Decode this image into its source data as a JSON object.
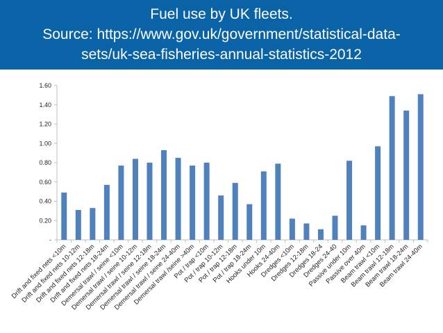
{
  "header": {
    "line1": "Fuel use by UK fleets.",
    "line2": "Source: https://www.gov.uk/government/statistical-data-",
    "line3": "sets/uk-sea-fisheries-annual-statistics-2012"
  },
  "colors": {
    "header_bg": "#0a63a6",
    "bar": "#4f81bd",
    "axis": "#bfbfbf"
  },
  "chart_data": {
    "type": "bar",
    "title": "",
    "xlabel": "",
    "ylabel": "",
    "ylim": [
      0,
      1.6
    ],
    "yticks": [
      0,
      0.2,
      0.4,
      0.6,
      0.8,
      1.0,
      1.2,
      1.4,
      1.6
    ],
    "ytick_labels": [
      "-",
      "0.20",
      "0.40",
      "0.60",
      "0.80",
      "1.00",
      "1.20",
      "1.40",
      "1.60"
    ],
    "grid": false,
    "legend": "none",
    "categories": [
      "Drift and fixed nets <10m",
      "Drift and fixed nets 10-12m",
      "Drift and fixed nets 12-18m",
      "Drift and fixed nets 18-24m",
      "Demersal trawl / seine <10m",
      "Demersal trawl / seine 10-12m",
      "Demersal trawl / seine 12-18m",
      "Demersal trawl / seine 18-24m",
      "Demersal trawl / seine 24-40m",
      "Demersal trawl /seine >40m",
      "Pot / trap <10m",
      "Pot / trap 10-12m",
      "Pot / trap 12-18m",
      "Pot / trap 18-24m",
      "Hooks under 10m",
      "Hooks 24-40m",
      "Dredges <10m",
      "Dredges 12-18m",
      "Dredges 18-24",
      "Dredges 24-40",
      "Passive under 10m",
      "Passive over 40m",
      "Beam trawl <10m",
      "Beam trawl 12-18m",
      "Beam trawl 18-24m",
      "Beam trawl 24-40m"
    ],
    "values": [
      0.49,
      0.31,
      0.33,
      0.57,
      0.77,
      0.84,
      0.8,
      0.93,
      0.85,
      0.77,
      0.8,
      0.46,
      0.59,
      0.37,
      0.71,
      0.79,
      0.22,
      0.17,
      0.11,
      0.25,
      0.82,
      0.15,
      0.97,
      1.49,
      1.34,
      1.51
    ]
  }
}
